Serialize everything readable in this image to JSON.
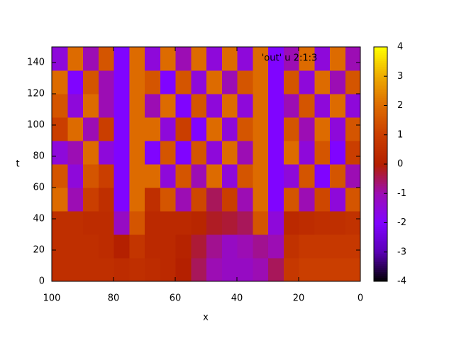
{
  "chart_data": {
    "type": "heatmap",
    "title": "'out' u 2:1:3",
    "x_label": "x",
    "y_label": "t",
    "xlim": [
      100,
      0
    ],
    "xticks": [
      100,
      80,
      60,
      40,
      20,
      0
    ],
    "ylim": [
      0,
      150
    ],
    "yticks": [
      0,
      20,
      40,
      60,
      80,
      100,
      120,
      140
    ],
    "cblim": [
      -4,
      4
    ],
    "cbticks": [
      -4,
      -3,
      -2,
      -1,
      0,
      1,
      2,
      3,
      4
    ],
    "colormap": [
      "#000000",
      "#5a00b4",
      "#8004ff",
      "#9c0db4",
      "#b42000",
      "#ca3e00",
      "#dd6b00",
      "#eeab00",
      "#ffff00"
    ],
    "x": [
      2.5,
      7.5,
      12.5,
      17.5,
      22.5,
      27.5,
      32.5,
      37.5,
      42.5,
      47.5,
      52.5,
      57.5,
      62.5,
      67.5,
      72.5,
      77.5,
      82.5,
      87.5,
      92.5,
      97.5
    ],
    "y": [
      7.5,
      22.5,
      37.5,
      52.5,
      67.5,
      82.5,
      97.5,
      112.5,
      127.5,
      142.5
    ],
    "z": [
      [
        1,
        1,
        1,
        1,
        0.8,
        -0.5,
        -1,
        -1.2,
        -1.2,
        -1,
        -0.5,
        0,
        0.3,
        0.4,
        0.5,
        0.4,
        0.5,
        0.5,
        0.5,
        0.5
      ],
      [
        0.8,
        0.8,
        0.8,
        0.8,
        0.6,
        -1,
        -0.8,
        -1,
        -1.2,
        -0.8,
        -0.3,
        0.1,
        0.3,
        0.3,
        0.7,
        0,
        0.4,
        0.5,
        0.5,
        0.5
      ],
      [
        0.6,
        0.5,
        0.5,
        0.4,
        0.3,
        -1.5,
        1.5,
        -0.5,
        -0.3,
        -0.2,
        0.2,
        0.3,
        0.3,
        0.3,
        1.5,
        -1.2,
        0.4,
        0.4,
        0.5,
        0.5
      ],
      [
        1.5,
        -1.5,
        1.2,
        -1,
        1.5,
        -2,
        2,
        -1,
        1,
        -0.5,
        1.2,
        -1,
        1.5,
        0.5,
        2,
        -2,
        0.5,
        1,
        -1,
        2
      ],
      [
        -1,
        1.5,
        -2,
        1.5,
        -1.5,
        -2,
        2,
        1.5,
        -1.5,
        2,
        -1,
        1.5,
        -1.5,
        2,
        2,
        -2,
        1,
        1.5,
        -1.5,
        1.5
      ],
      [
        1,
        -2,
        1.5,
        -1.5,
        2,
        -2,
        2,
        -1,
        2,
        -1.5,
        1.5,
        -2,
        1.5,
        -2,
        2,
        -2,
        -1.5,
        2,
        -1,
        -1.5
      ],
      [
        1.5,
        -1.5,
        2,
        -1,
        1.5,
        -2,
        2,
        1.5,
        -1.5,
        2,
        -2,
        1,
        -1.5,
        2,
        2,
        -2,
        1,
        -1,
        2,
        1
      ],
      [
        -1.5,
        2,
        -1.5,
        1.5,
        -1,
        -2,
        2,
        -1.5,
        2,
        -1.5,
        1.5,
        -2,
        2,
        -1,
        2,
        -2,
        -1,
        2,
        -1.5,
        1.5
      ],
      [
        1.5,
        -1,
        2,
        -1.5,
        1.5,
        -2,
        2,
        1.5,
        -1,
        2,
        -1.5,
        1.5,
        -2,
        1.5,
        2,
        -2,
        -1,
        1.5,
        -2,
        2
      ],
      [
        -1,
        2,
        -1.5,
        2,
        -1,
        -2,
        2,
        -1.5,
        2,
        -1.5,
        2,
        -1,
        2,
        -1.5,
        2,
        -2,
        1.5,
        -1,
        2,
        -1.5
      ]
    ]
  }
}
